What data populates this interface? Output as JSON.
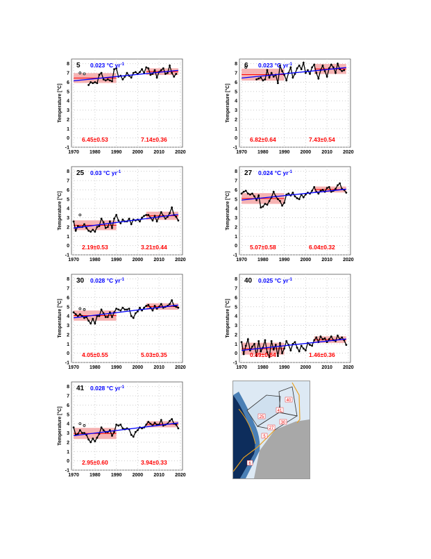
{
  "chart_data": [
    {
      "type": "line",
      "panel": "5",
      "slope_label": "0.023 °C yr",
      "slope": 0.023,
      "mean_early": "6.45±0.53",
      "mean_late": "7.14±0.36",
      "m1": 6.45,
      "s1": 0.53,
      "m2": 7.14,
      "s2": 0.36,
      "open_points": [
        [
          1973,
          7.0
        ],
        [
          1975,
          6.9
        ]
      ],
      "start": 1977,
      "values": [
        5.7,
        6.0,
        5.9,
        6.0,
        5.9,
        6.8,
        7.0,
        6.3,
        6.2,
        6.3,
        6.2,
        6.1,
        7.4,
        7.5,
        6.6,
        6.7,
        6.3,
        6.6,
        7.0,
        6.7,
        6.5,
        7.0,
        7.1,
        6.9,
        7.1,
        7.4,
        7.0,
        7.6,
        7.5,
        6.8,
        6.9,
        7.3,
        6.5,
        7.1,
        7.3,
        7.5,
        6.9,
        7.0,
        7.8,
        7.0,
        6.6,
        6.9
      ]
    },
    {
      "type": "line",
      "panel": "6",
      "slope_label": "0.023 °C yr",
      "slope": 0.023,
      "mean_early": "6.82±0.64",
      "mean_late": "7.43±0.54",
      "m1": 6.82,
      "s1": 0.64,
      "m2": 7.43,
      "s2": 0.54,
      "open_points": [
        [
          1972,
          7.6
        ]
      ],
      "start": 1977,
      "values": [
        6.3,
        6.4,
        6.5,
        6.2,
        6.3,
        7.3,
        6.5,
        7.0,
        6.6,
        6.8,
        5.9,
        7.8,
        7.2,
        6.8,
        6.2,
        7.0,
        7.6,
        6.5,
        6.9,
        7.5,
        7.8,
        7.4,
        8.1,
        7.0,
        7.3,
        6.9,
        7.6,
        7.9,
        7.0,
        6.4,
        7.3,
        7.8,
        7.2,
        6.6,
        7.5,
        7.9,
        7.6,
        7.0,
        8.0,
        7.4,
        7.2,
        7.3
      ]
    },
    {
      "type": "line",
      "panel": "25",
      "slope_label": "0.03 °C yr",
      "slope": 0.03,
      "mean_early": "2.19±0.53",
      "mean_late": "3.21±0.44",
      "m1": 2.19,
      "s1": 0.53,
      "m2": 3.21,
      "s2": 0.44,
      "open_points": [
        [
          1973,
          3.3
        ]
      ],
      "start": 1970,
      "values": [
        2.6,
        1.6,
        2.1,
        2.0,
        2.0,
        2.3,
        1.9,
        1.6,
        1.5,
        1.7,
        1.5,
        2.0,
        2.1,
        2.9,
        2.5,
        1.9,
        2.0,
        2.6,
        1.9,
        2.9,
        3.3,
        2.7,
        2.4,
        2.8,
        2.6,
        2.6,
        2.9,
        2.3,
        2.8,
        2.7,
        2.8,
        2.6,
        3.0,
        3.2,
        3.3,
        3.3,
        3.0,
        2.7,
        3.2,
        2.6,
        3.1,
        3.6,
        3.2,
        2.9,
        3.1,
        3.5,
        4.1,
        3.3,
        3.1,
        2.7
      ]
    },
    {
      "type": "line",
      "panel": "27",
      "slope_label": "0.024 °C yr",
      "slope": 0.024,
      "mean_early": "5.07±0.58",
      "mean_late": "6.04±0.32",
      "m1": 5.07,
      "s1": 0.58,
      "m2": 6.04,
      "s2": 0.32,
      "open_points": [],
      "start": 1970,
      "values": [
        5.6,
        5.8,
        5.9,
        5.6,
        5.5,
        5.6,
        5.3,
        4.9,
        5.4,
        4.1,
        4.2,
        4.5,
        4.4,
        4.8,
        5.2,
        5.8,
        5.3,
        5.0,
        4.8,
        4.3,
        4.6,
        5.5,
        5.6,
        5.4,
        5.7,
        5.3,
        5.1,
        5.0,
        5.5,
        5.2,
        5.5,
        5.7,
        5.6,
        5.9,
        6.3,
        5.8,
        5.6,
        5.9,
        6.0,
        5.8,
        6.2,
        6.3,
        5.8,
        5.9,
        6.1,
        6.5,
        6.7,
        6.1,
        6.0,
        5.7
      ]
    },
    {
      "type": "line",
      "panel": "30",
      "slope_label": "0.028 °C yr",
      "slope": 0.028,
      "mean_early": "4.05±0.55",
      "mean_late": "5.03±0.35",
      "m1": 4.05,
      "s1": 0.55,
      "m2": 5.03,
      "s2": 0.35,
      "open_points": [
        [
          1973,
          4.8
        ],
        [
          1975,
          4.7
        ]
      ],
      "start": 1970,
      "values": [
        4.4,
        4.2,
        4.0,
        4.2,
        4.0,
        3.8,
        3.9,
        3.5,
        3.2,
        3.7,
        3.2,
        4.0,
        4.0,
        4.7,
        4.3,
        3.9,
        3.9,
        4.4,
        3.9,
        4.4,
        4.8,
        4.7,
        4.6,
        4.9,
        4.7,
        4.7,
        4.8,
        4.0,
        3.8,
        4.3,
        4.5,
        4.9,
        4.6,
        4.9,
        5.1,
        5.2,
        4.9,
        4.6,
        5.1,
        4.8,
        5.0,
        5.3,
        4.9,
        5.0,
        5.1,
        5.3,
        5.7,
        5.1,
        5.0,
        4.9
      ]
    },
    {
      "type": "line",
      "panel": "40",
      "slope_label": "0.025 °C yr",
      "slope": 0.025,
      "mean_early": "0.49±0.64",
      "mean_late": "1.46±0.36",
      "m1": 0.49,
      "s1": 0.64,
      "m2": 1.46,
      "s2": 0.36,
      "open_points": [],
      "start": 1970,
      "values": [
        1.2,
        -0.1,
        0.8,
        1.5,
        0.3,
        0.7,
        1.0,
        -0.3,
        1.3,
        0.2,
        0.6,
        1.4,
        0.1,
        -0.4,
        1.3,
        0.4,
        0.9,
        -0.3,
        1.1,
        0.0,
        0.5,
        1.3,
        0.9,
        0.3,
        1.0,
        1.2,
        0.6,
        0.2,
        0.8,
        0.5,
        0.3,
        1.1,
        0.9,
        0.8,
        1.4,
        1.7,
        1.2,
        1.8,
        1.5,
        1.6,
        1.2,
        1.5,
        1.8,
        1.4,
        1.3,
        1.9,
        1.5,
        1.7,
        1.4,
        0.9
      ]
    },
    {
      "type": "line",
      "panel": "41",
      "slope_label": "0.028 °C yr",
      "slope": 0.028,
      "mean_early": "2.95±0.60",
      "mean_late": "3.94±0.33",
      "m1": 2.95,
      "s1": 0.6,
      "m2": 3.94,
      "s2": 0.33,
      "open_points": [
        [
          1973,
          4.0
        ],
        [
          1975,
          3.8
        ]
      ],
      "start": 1970,
      "values": [
        3.6,
        2.8,
        2.9,
        3.3,
        3.0,
        3.0,
        2.8,
        2.3,
        2.0,
        2.4,
        2.1,
        2.5,
        2.9,
        3.6,
        3.3,
        3.1,
        3.1,
        3.3,
        2.7,
        3.1,
        3.9,
        3.8,
        3.9,
        3.5,
        3.4,
        3.5,
        3.4,
        2.8,
        2.6,
        3.1,
        3.3,
        3.6,
        3.5,
        3.6,
        3.9,
        4.2,
        4.0,
        3.8,
        4.1,
        3.9,
        3.9,
        4.4,
        3.8,
        3.9,
        4.0,
        4.3,
        4.5,
        4.0,
        3.9,
        3.5
      ]
    }
  ],
  "axes": {
    "ylabel": "Temperature [°C]",
    "xlim": [
      1969,
      2021
    ],
    "ylim": [
      -1,
      8.5
    ],
    "xticks": [
      "1970",
      "1980",
      "1990",
      "2000",
      "2010",
      "2020"
    ],
    "yticks": [
      "-1",
      "0",
      "1",
      "2",
      "3",
      "4",
      "5",
      "6",
      "7",
      "8"
    ],
    "slope_exponent": "-1"
  },
  "colors": {
    "trend": "#0000ff",
    "mean": "#ff0000",
    "band": "#f4a0a0",
    "data": "#000000"
  },
  "map": {
    "labels": [
      "40",
      "41",
      "25",
      "30",
      "27",
      "5",
      "6"
    ]
  }
}
